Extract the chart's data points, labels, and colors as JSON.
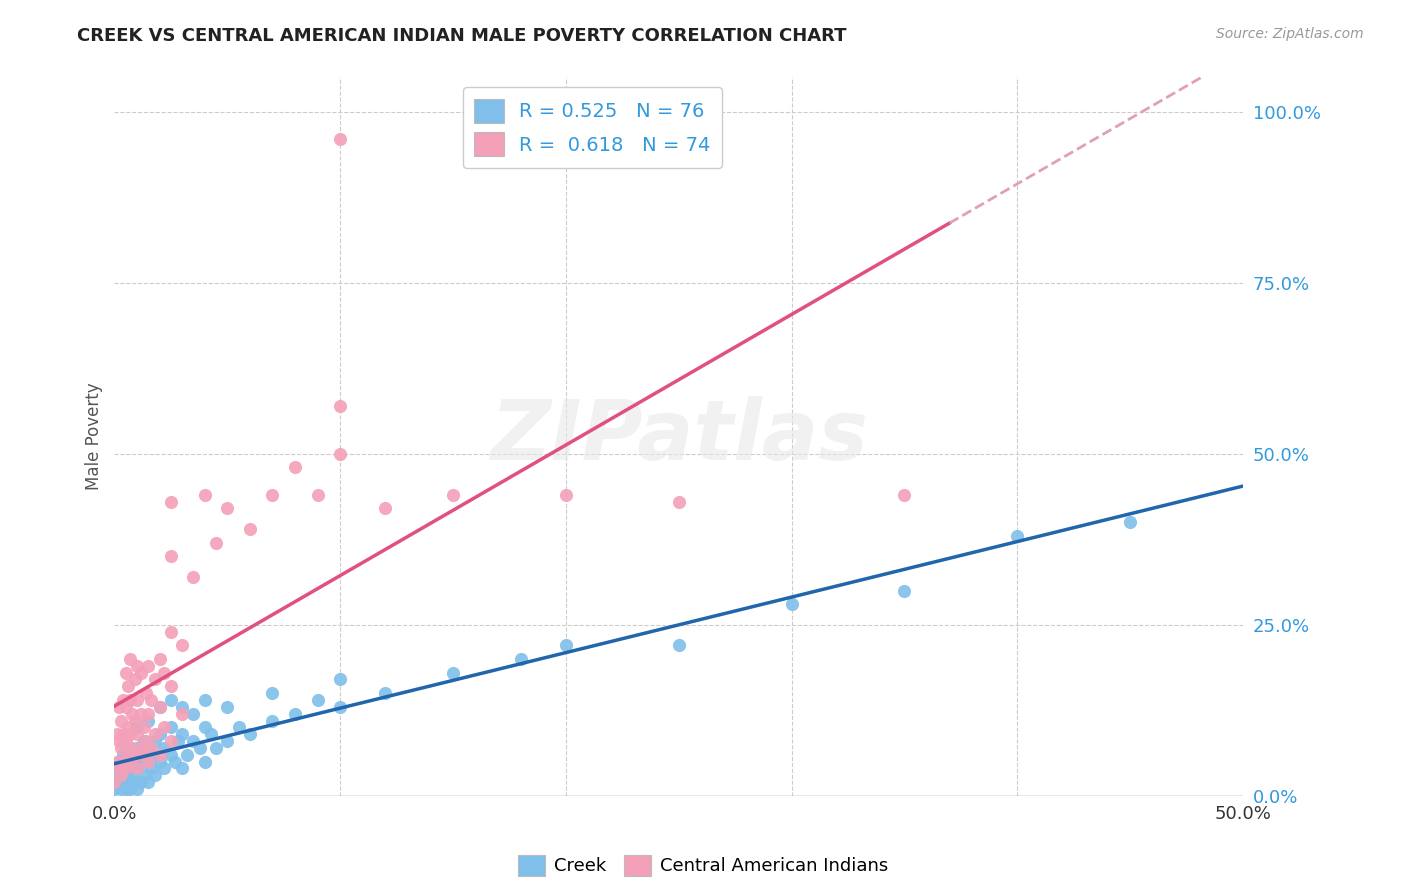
{
  "title": "CREEK VS CENTRAL AMERICAN INDIAN MALE POVERTY CORRELATION CHART",
  "source": "Source: ZipAtlas.com",
  "ylabel": "Male Poverty",
  "ytick_labels": [
    "0.0%",
    "25.0%",
    "50.0%",
    "75.0%",
    "100.0%"
  ],
  "ytick_values": [
    0.0,
    0.25,
    0.5,
    0.75,
    1.0
  ],
  "xlim": [
    0.0,
    0.5
  ],
  "ylim": [
    0.0,
    1.05
  ],
  "creek_R": 0.525,
  "creek_N": 76,
  "ca_indian_R": 0.618,
  "ca_indian_N": 74,
  "creek_color": "#7fbfea",
  "ca_indian_color": "#f4a0b8",
  "creek_line_color": "#2166ac",
  "ca_indian_line_color": "#e05080",
  "ca_indian_dash_color": "#e0a0b8",
  "watermark": "ZIPatlas",
  "background_color": "#ffffff",
  "tick_color": "#3399dd",
  "creek_scatter": [
    [
      0.0,
      0.01
    ],
    [
      0.001,
      0.03
    ],
    [
      0.002,
      0.02
    ],
    [
      0.002,
      0.05
    ],
    [
      0.003,
      0.01
    ],
    [
      0.003,
      0.04
    ],
    [
      0.004,
      0.02
    ],
    [
      0.004,
      0.06
    ],
    [
      0.005,
      0.01
    ],
    [
      0.005,
      0.03
    ],
    [
      0.005,
      0.07
    ],
    [
      0.006,
      0.02
    ],
    [
      0.006,
      0.05
    ],
    [
      0.007,
      0.01
    ],
    [
      0.007,
      0.04
    ],
    [
      0.008,
      0.03
    ],
    [
      0.008,
      0.06
    ],
    [
      0.009,
      0.02
    ],
    [
      0.009,
      0.05
    ],
    [
      0.01,
      0.01
    ],
    [
      0.01,
      0.04
    ],
    [
      0.01,
      0.07
    ],
    [
      0.01,
      0.1
    ],
    [
      0.012,
      0.02
    ],
    [
      0.012,
      0.06
    ],
    [
      0.013,
      0.03
    ],
    [
      0.013,
      0.08
    ],
    [
      0.014,
      0.05
    ],
    [
      0.015,
      0.02
    ],
    [
      0.015,
      0.07
    ],
    [
      0.015,
      0.11
    ],
    [
      0.016,
      0.04
    ],
    [
      0.017,
      0.06
    ],
    [
      0.018,
      0.03
    ],
    [
      0.018,
      0.08
    ],
    [
      0.02,
      0.05
    ],
    [
      0.02,
      0.09
    ],
    [
      0.02,
      0.13
    ],
    [
      0.022,
      0.04
    ],
    [
      0.022,
      0.07
    ],
    [
      0.025,
      0.06
    ],
    [
      0.025,
      0.1
    ],
    [
      0.025,
      0.14
    ],
    [
      0.027,
      0.05
    ],
    [
      0.028,
      0.08
    ],
    [
      0.03,
      0.04
    ],
    [
      0.03,
      0.09
    ],
    [
      0.03,
      0.13
    ],
    [
      0.032,
      0.06
    ],
    [
      0.035,
      0.08
    ],
    [
      0.035,
      0.12
    ],
    [
      0.038,
      0.07
    ],
    [
      0.04,
      0.05
    ],
    [
      0.04,
      0.1
    ],
    [
      0.04,
      0.14
    ],
    [
      0.043,
      0.09
    ],
    [
      0.045,
      0.07
    ],
    [
      0.05,
      0.08
    ],
    [
      0.05,
      0.13
    ],
    [
      0.055,
      0.1
    ],
    [
      0.06,
      0.09
    ],
    [
      0.07,
      0.11
    ],
    [
      0.07,
      0.15
    ],
    [
      0.08,
      0.12
    ],
    [
      0.09,
      0.14
    ],
    [
      0.1,
      0.13
    ],
    [
      0.1,
      0.17
    ],
    [
      0.12,
      0.15
    ],
    [
      0.15,
      0.18
    ],
    [
      0.18,
      0.2
    ],
    [
      0.2,
      0.22
    ],
    [
      0.25,
      0.22
    ],
    [
      0.3,
      0.28
    ],
    [
      0.35,
      0.3
    ],
    [
      0.4,
      0.38
    ],
    [
      0.45,
      0.4
    ]
  ],
  "ca_indian_scatter": [
    [
      0.0,
      0.02
    ],
    [
      0.001,
      0.05
    ],
    [
      0.001,
      0.09
    ],
    [
      0.002,
      0.04
    ],
    [
      0.002,
      0.08
    ],
    [
      0.002,
      0.13
    ],
    [
      0.003,
      0.03
    ],
    [
      0.003,
      0.07
    ],
    [
      0.003,
      0.11
    ],
    [
      0.004,
      0.05
    ],
    [
      0.004,
      0.09
    ],
    [
      0.004,
      0.14
    ],
    [
      0.005,
      0.04
    ],
    [
      0.005,
      0.08
    ],
    [
      0.005,
      0.13
    ],
    [
      0.005,
      0.18
    ],
    [
      0.006,
      0.06
    ],
    [
      0.006,
      0.1
    ],
    [
      0.006,
      0.16
    ],
    [
      0.007,
      0.05
    ],
    [
      0.007,
      0.09
    ],
    [
      0.007,
      0.14
    ],
    [
      0.007,
      0.2
    ],
    [
      0.008,
      0.07
    ],
    [
      0.008,
      0.12
    ],
    [
      0.009,
      0.06
    ],
    [
      0.009,
      0.11
    ],
    [
      0.009,
      0.17
    ],
    [
      0.01,
      0.04
    ],
    [
      0.01,
      0.09
    ],
    [
      0.01,
      0.14
    ],
    [
      0.01,
      0.19
    ],
    [
      0.012,
      0.07
    ],
    [
      0.012,
      0.12
    ],
    [
      0.012,
      0.18
    ],
    [
      0.013,
      0.06
    ],
    [
      0.013,
      0.1
    ],
    [
      0.014,
      0.08
    ],
    [
      0.014,
      0.15
    ],
    [
      0.015,
      0.05
    ],
    [
      0.015,
      0.12
    ],
    [
      0.015,
      0.19
    ],
    [
      0.016,
      0.07
    ],
    [
      0.016,
      0.14
    ],
    [
      0.018,
      0.09
    ],
    [
      0.018,
      0.17
    ],
    [
      0.02,
      0.06
    ],
    [
      0.02,
      0.13
    ],
    [
      0.02,
      0.2
    ],
    [
      0.022,
      0.1
    ],
    [
      0.022,
      0.18
    ],
    [
      0.025,
      0.08
    ],
    [
      0.025,
      0.16
    ],
    [
      0.025,
      0.24
    ],
    [
      0.025,
      0.35
    ],
    [
      0.025,
      0.43
    ],
    [
      0.03,
      0.12
    ],
    [
      0.03,
      0.22
    ],
    [
      0.035,
      0.32
    ],
    [
      0.04,
      0.44
    ],
    [
      0.045,
      0.37
    ],
    [
      0.05,
      0.42
    ],
    [
      0.06,
      0.39
    ],
    [
      0.07,
      0.44
    ],
    [
      0.08,
      0.48
    ],
    [
      0.09,
      0.44
    ],
    [
      0.1,
      0.5
    ],
    [
      0.1,
      0.57
    ],
    [
      0.12,
      0.42
    ],
    [
      0.1,
      0.96
    ],
    [
      0.15,
      0.44
    ],
    [
      0.2,
      0.44
    ],
    [
      0.25,
      0.43
    ],
    [
      0.35,
      0.44
    ]
  ]
}
